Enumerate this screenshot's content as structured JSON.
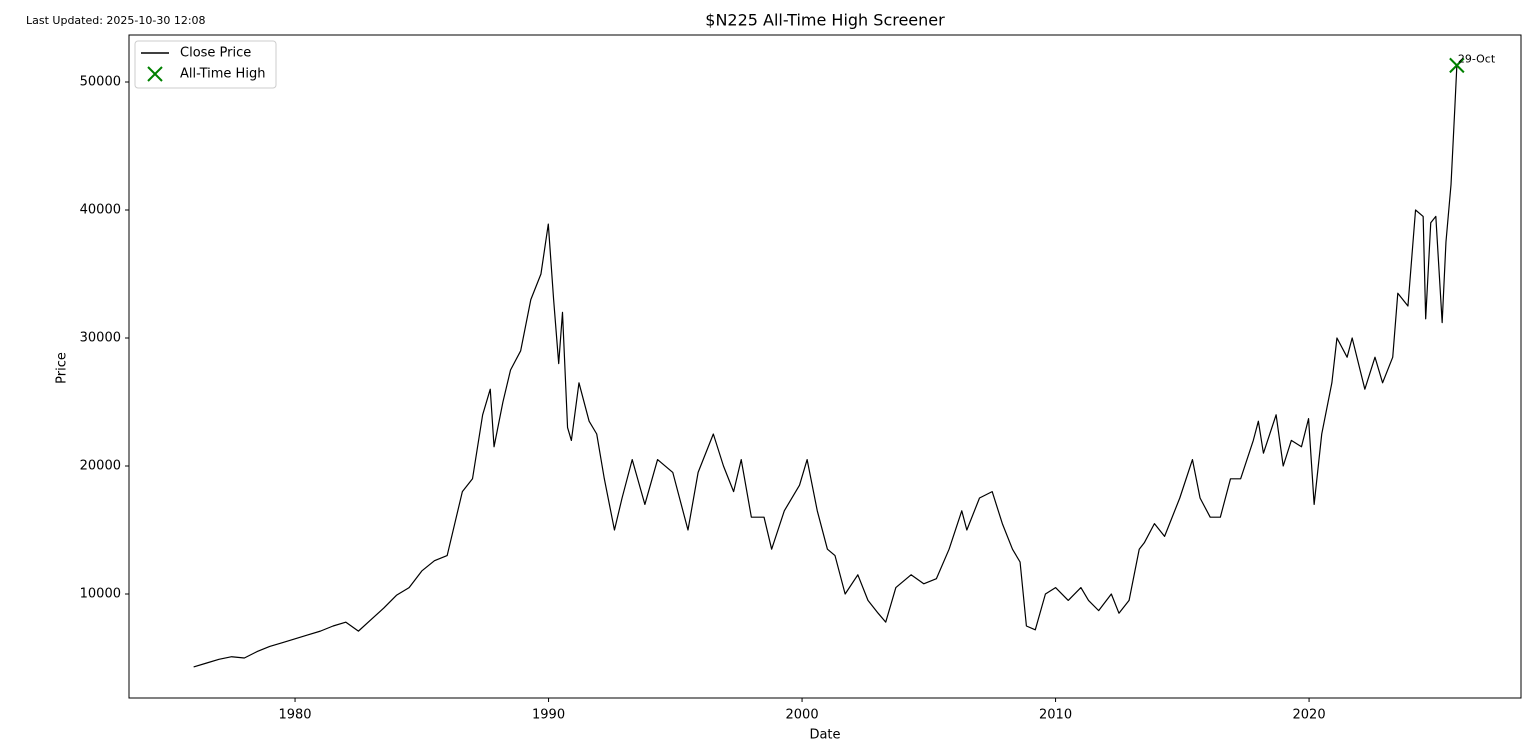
{
  "chart_data": {
    "type": "line",
    "title": "$N225 All-Time High Screener",
    "last_updated": "Last Updated: 2025-10-30 12:08",
    "x_label": "Date",
    "y_label": "Price",
    "xlim": [
      1973.45,
      2028.36
    ],
    "ylim": [
      1875,
      53672
    ],
    "xticks": [
      1980,
      1990,
      2000,
      2010,
      2020
    ],
    "yticks": [
      10000,
      20000,
      30000,
      40000,
      50000
    ],
    "legend": "upper left",
    "grid": false,
    "series": [
      {
        "name": "Close Price",
        "type": "line",
        "color": "#000000",
        "x": [
          1976.0,
          1976.5,
          1977.0,
          1977.5,
          1978.0,
          1978.5,
          1979.0,
          1979.5,
          1980.0,
          1980.5,
          1981.0,
          1981.5,
          1982.0,
          1982.5,
          1983.0,
          1983.5,
          1984.0,
          1984.5,
          1985.0,
          1985.5,
          1986.0,
          1986.3,
          1986.6,
          1987.0,
          1987.4,
          1987.7,
          1987.85,
          1988.2,
          1988.5,
          1988.9,
          1989.3,
          1989.7,
          1989.99,
          1990.2,
          1990.4,
          1990.55,
          1990.75,
          1990.9,
          1991.2,
          1991.6,
          1991.9,
          1992.2,
          1992.6,
          1992.9,
          1993.3,
          1993.8,
          1994.3,
          1994.9,
          1995.5,
          1995.9,
          1996.5,
          1996.9,
          1997.3,
          1997.6,
          1998.0,
          1998.5,
          1998.8,
          1999.3,
          1999.9,
          2000.2,
          2000.6,
          2001.0,
          2001.3,
          2001.7,
          2002.2,
          2002.6,
          2003.0,
          2003.3,
          2003.7,
          2004.3,
          2004.8,
          2005.3,
          2005.8,
          2006.3,
          2006.5,
          2007.0,
          2007.5,
          2007.9,
          2008.3,
          2008.6,
          2008.85,
          2009.2,
          2009.6,
          2010.0,
          2010.5,
          2011.0,
          2011.3,
          2011.7,
          2012.2,
          2012.5,
          2012.9,
          2013.3,
          2013.5,
          2013.9,
          2014.3,
          2014.9,
          2015.4,
          2015.7,
          2016.1,
          2016.5,
          2016.9,
          2017.3,
          2017.8,
          2018.0,
          2018.2,
          2018.7,
          2018.98,
          2019.3,
          2019.7,
          2019.98,
          2020.2,
          2020.5,
          2020.9,
          2021.1,
          2021.5,
          2021.7,
          2022.2,
          2022.6,
          2022.9,
          2023.3,
          2023.5,
          2023.9,
          2024.2,
          2024.5,
          2024.6,
          2024.8,
          2025.0,
          2025.25,
          2025.4,
          2025.6,
          2025.75,
          2025.83
        ],
        "values": [
          4300,
          4600,
          4900,
          5100,
          5000,
          5500,
          5900,
          6200,
          6500,
          6800,
          7100,
          7500,
          7800,
          7100,
          8000,
          8900,
          9900,
          10500,
          11800,
          12600,
          13000,
          15500,
          18000,
          19000,
          24000,
          26000,
          21500,
          25000,
          27500,
          29000,
          33000,
          35000,
          38900,
          33000,
          28000,
          32000,
          23000,
          22000,
          26500,
          23500,
          22500,
          19000,
          15000,
          17500,
          20500,
          17000,
          20500,
          19500,
          15000,
          19500,
          22500,
          20000,
          18000,
          20500,
          16000,
          16000,
          13500,
          16500,
          18500,
          20500,
          16500,
          13500,
          13000,
          10000,
          11500,
          9500,
          8500,
          7800,
          10500,
          11500,
          10800,
          11200,
          13500,
          16500,
          15000,
          17500,
          18000,
          15500,
          13500,
          12500,
          7500,
          7200,
          10000,
          10500,
          9500,
          10500,
          9500,
          8700,
          10000,
          8500,
          9500,
          13500,
          14000,
          15500,
          14500,
          17500,
          20500,
          17500,
          16000,
          16000,
          19000,
          19000,
          22000,
          23500,
          21000,
          24000,
          20000,
          22000,
          21500,
          23700,
          17000,
          22500,
          26500,
          30000,
          28500,
          30000,
          26000,
          28500,
          26500,
          28500,
          33500,
          32500,
          40000,
          39500,
          31500,
          39000,
          39500,
          31200,
          37500,
          42000,
          48000,
          51300
        ]
      },
      {
        "name": "All-Time High",
        "type": "scatter",
        "marker": "x",
        "color": "#008000",
        "x": [
          2025.83
        ],
        "values": [
          51300
        ]
      }
    ],
    "annotations": [
      {
        "text": "29-Oct",
        "x": 2025.83,
        "y": 51300
      }
    ]
  }
}
